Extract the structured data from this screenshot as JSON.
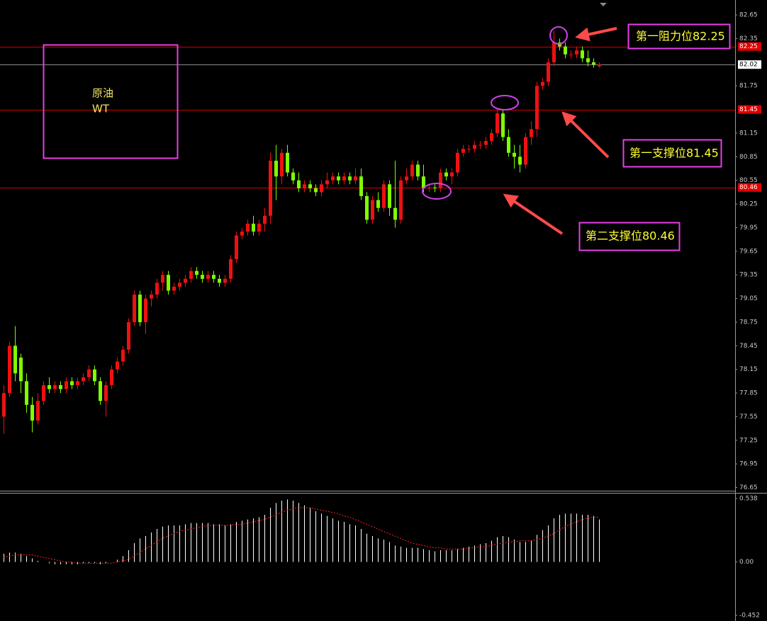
{
  "chart_data": [
    {
      "type": "candlestick",
      "ylim": [
        76.61,
        82.84
      ],
      "yticks": [
        82.65,
        82.35,
        81.75,
        81.15,
        80.85,
        80.55,
        80.25,
        79.95,
        79.65,
        79.35,
        79.05,
        78.75,
        78.45,
        78.15,
        77.85,
        77.55,
        77.25,
        76.95,
        76.65
      ],
      "up_color": "#ee1111",
      "down_color": "#7fff00",
      "open": [
        77.55,
        77.85,
        78.45,
        78.3,
        78.0,
        77.7,
        77.5,
        77.75,
        77.95,
        77.9,
        77.95,
        77.9,
        78.0,
        77.95,
        78.0,
        78.05,
        78.15,
        78.0,
        77.75,
        77.95,
        78.15,
        78.25,
        78.4,
        78.75,
        79.1,
        78.75,
        79.05,
        79.1,
        79.25,
        79.35,
        79.15,
        79.2,
        79.25,
        79.3,
        79.4,
        79.35,
        79.3,
        79.35,
        79.3,
        79.25,
        79.3,
        79.55,
        79.85,
        79.9,
        80.0,
        79.9,
        80.0,
        80.1,
        80.8,
        80.6,
        80.9,
        80.65,
        80.55,
        80.45,
        80.5,
        80.45,
        80.4,
        80.5,
        80.55,
        80.6,
        80.55,
        80.6,
        80.55,
        80.6,
        80.35,
        80.05,
        80.3,
        80.2,
        80.5,
        80.2,
        80.05,
        80.55,
        80.6,
        80.75,
        80.6,
        80.45,
        80.46,
        80.45,
        80.65,
        80.6,
        80.65,
        80.9,
        80.95,
        80.95,
        81.0,
        81.0,
        81.05,
        81.15,
        81.4,
        81.1,
        80.9,
        80.85,
        80.75,
        81.1,
        81.2,
        81.75,
        81.8,
        82.05,
        82.3,
        82.25,
        82.15,
        82.15,
        82.2,
        82.1,
        82.05,
        82.0
      ],
      "high": [
        77.95,
        78.5,
        78.7,
        78.35,
        78.1,
        77.8,
        77.85,
        78.0,
        78.05,
        78.0,
        78.0,
        78.05,
        78.05,
        78.05,
        78.1,
        78.2,
        78.2,
        78.05,
        78.0,
        78.2,
        78.3,
        78.45,
        78.8,
        79.15,
        79.15,
        79.1,
        79.15,
        79.3,
        79.4,
        79.4,
        79.25,
        79.3,
        79.35,
        79.45,
        79.45,
        79.4,
        79.4,
        79.4,
        79.35,
        79.35,
        79.6,
        79.9,
        79.95,
        80.05,
        80.1,
        80.05,
        80.2,
        80.9,
        81.0,
        80.95,
        81.0,
        80.7,
        80.65,
        80.55,
        80.55,
        80.5,
        80.55,
        80.65,
        80.65,
        80.65,
        80.65,
        80.65,
        80.7,
        80.7,
        80.4,
        80.35,
        80.4,
        80.55,
        80.55,
        80.8,
        80.6,
        80.7,
        80.8,
        80.8,
        80.75,
        80.5,
        80.5,
        80.7,
        80.7,
        80.7,
        80.95,
        81.0,
        81.0,
        81.05,
        81.05,
        81.1,
        81.2,
        81.45,
        81.45,
        81.2,
        81.0,
        81.0,
        81.15,
        81.3,
        81.8,
        81.85,
        82.1,
        82.45,
        82.35,
        82.3,
        82.2,
        82.25,
        82.25,
        82.2,
        82.1,
        82.05
      ],
      "low": [
        77.33,
        77.8,
        78.0,
        77.85,
        77.6,
        77.35,
        77.45,
        77.7,
        77.85,
        77.85,
        77.85,
        77.85,
        77.9,
        77.9,
        77.95,
        78.0,
        77.95,
        77.7,
        77.55,
        77.9,
        78.1,
        78.2,
        78.35,
        78.7,
        78.7,
        78.6,
        78.95,
        79.05,
        79.15,
        79.1,
        79.1,
        79.15,
        79.2,
        79.25,
        79.3,
        79.25,
        79.25,
        79.25,
        79.2,
        79.2,
        79.25,
        79.5,
        79.8,
        79.85,
        79.85,
        79.85,
        79.9,
        80.0,
        80.3,
        80.5,
        80.6,
        80.5,
        80.4,
        80.4,
        80.4,
        80.35,
        80.35,
        80.45,
        80.5,
        80.5,
        80.5,
        80.5,
        80.5,
        80.3,
        80.0,
        80.0,
        80.15,
        80.15,
        80.1,
        79.95,
        80.0,
        80.5,
        80.55,
        80.55,
        80.4,
        80.4,
        80.4,
        80.4,
        80.55,
        80.5,
        80.6,
        80.85,
        80.9,
        80.9,
        80.95,
        80.95,
        81.0,
        81.1,
        81.05,
        80.85,
        80.7,
        80.65,
        80.7,
        81.0,
        81.1,
        81.7,
        81.75,
        82.0,
        82.2,
        82.1,
        82.1,
        82.1,
        82.05,
        82.0,
        81.98,
        81.98
      ],
      "close": [
        77.85,
        78.45,
        78.1,
        78.0,
        77.7,
        77.5,
        77.75,
        77.95,
        77.9,
        77.95,
        77.9,
        78.0,
        77.95,
        78.0,
        78.05,
        78.15,
        78.0,
        77.75,
        77.95,
        78.15,
        78.25,
        78.4,
        78.75,
        79.1,
        78.75,
        79.05,
        79.1,
        79.25,
        79.35,
        79.15,
        79.2,
        79.25,
        79.3,
        79.4,
        79.35,
        79.3,
        79.35,
        79.3,
        79.25,
        79.3,
        79.55,
        79.85,
        79.9,
        80.0,
        79.9,
        80.0,
        80.1,
        80.8,
        80.6,
        80.9,
        80.65,
        80.55,
        80.45,
        80.5,
        80.45,
        80.4,
        80.5,
        80.55,
        80.6,
        80.55,
        80.6,
        80.55,
        80.6,
        80.35,
        80.05,
        80.3,
        80.2,
        80.5,
        80.2,
        80.05,
        80.55,
        80.6,
        80.75,
        80.6,
        80.45,
        80.46,
        80.45,
        80.65,
        80.6,
        80.65,
        80.9,
        80.95,
        80.95,
        81.0,
        81.0,
        81.05,
        81.15,
        81.4,
        81.1,
        80.9,
        80.85,
        80.75,
        81.1,
        81.2,
        81.75,
        81.8,
        82.05,
        82.3,
        82.25,
        82.15,
        82.15,
        82.2,
        82.1,
        82.05,
        82.02,
        82.02
      ],
      "price_lines": [
        {
          "value": 82.25,
          "color": "#d00000",
          "tag_color": "#e00000",
          "tag_text_color": "#ffffff"
        },
        {
          "value": 82.02,
          "color": "#8c8c8c",
          "tag_color": "#ffffff",
          "tag_text_color": "#000000"
        },
        {
          "value": 81.45,
          "color": "#d00000",
          "tag_color": "#e00000",
          "tag_text_color": "#ffffff"
        },
        {
          "value": 80.46,
          "color": "#d00000",
          "tag_color": "#e00000",
          "tag_text_color": "#ffffff"
        }
      ],
      "note": {
        "lines": [
          "原油",
          "WT"
        ]
      },
      "annotations": [
        {
          "text": "第一阻力位82.25"
        },
        {
          "text": "第一支撑位81.45"
        },
        {
          "text": "第二支撑位80.46"
        }
      ]
    },
    {
      "type": "macd",
      "ylim": [
        -0.5,
        0.58
      ],
      "yticks": [
        0.538,
        {
          "value": 0,
          "label": "0.00"
        },
        -0.452
      ],
      "histogram": {
        "color": "#ffffff",
        "values": [
          0.07,
          0.08,
          0.08,
          0.07,
          0.05,
          0.03,
          0.01,
          0.0,
          -0.01,
          -0.02,
          -0.02,
          -0.02,
          -0.02,
          -0.02,
          -0.01,
          -0.01,
          -0.01,
          -0.02,
          -0.01,
          0.0,
          0.02,
          0.05,
          0.1,
          0.16,
          0.2,
          0.22,
          0.25,
          0.28,
          0.3,
          0.31,
          0.31,
          0.31,
          0.32,
          0.33,
          0.33,
          0.33,
          0.33,
          0.32,
          0.32,
          0.31,
          0.32,
          0.34,
          0.35,
          0.36,
          0.37,
          0.38,
          0.4,
          0.46,
          0.5,
          0.52,
          0.53,
          0.52,
          0.5,
          0.48,
          0.46,
          0.43,
          0.41,
          0.39,
          0.37,
          0.35,
          0.34,
          0.32,
          0.31,
          0.28,
          0.24,
          0.22,
          0.2,
          0.19,
          0.17,
          0.14,
          0.13,
          0.12,
          0.12,
          0.12,
          0.11,
          0.1,
          0.09,
          0.1,
          0.1,
          0.1,
          0.11,
          0.12,
          0.13,
          0.14,
          0.15,
          0.16,
          0.18,
          0.21,
          0.22,
          0.21,
          0.19,
          0.17,
          0.17,
          0.18,
          0.23,
          0.27,
          0.31,
          0.37,
          0.4,
          0.41,
          0.41,
          0.41,
          0.4,
          0.4,
          0.39,
          0.36
        ]
      },
      "signal": {
        "color": "#ff2020",
        "values": [
          0.04,
          0.05,
          0.06,
          0.06,
          0.06,
          0.06,
          0.05,
          0.04,
          0.03,
          0.02,
          0.01,
          0.0,
          0.0,
          -0.01,
          -0.01,
          -0.01,
          -0.01,
          -0.01,
          -0.01,
          -0.01,
          0.0,
          0.01,
          0.02,
          0.05,
          0.08,
          0.11,
          0.14,
          0.17,
          0.2,
          0.22,
          0.24,
          0.26,
          0.27,
          0.28,
          0.29,
          0.3,
          0.31,
          0.31,
          0.31,
          0.31,
          0.31,
          0.32,
          0.32,
          0.33,
          0.34,
          0.35,
          0.36,
          0.38,
          0.4,
          0.42,
          0.44,
          0.45,
          0.46,
          0.46,
          0.46,
          0.45,
          0.44,
          0.43,
          0.42,
          0.41,
          0.39,
          0.38,
          0.36,
          0.34,
          0.32,
          0.3,
          0.28,
          0.26,
          0.24,
          0.22,
          0.2,
          0.18,
          0.16,
          0.15,
          0.14,
          0.13,
          0.12,
          0.12,
          0.11,
          0.11,
          0.11,
          0.11,
          0.12,
          0.12,
          0.13,
          0.13,
          0.14,
          0.15,
          0.16,
          0.17,
          0.17,
          0.18,
          0.18,
          0.18,
          0.19,
          0.2,
          0.22,
          0.24,
          0.27,
          0.3,
          0.32,
          0.34,
          0.36,
          0.37,
          0.38,
          0.38
        ]
      }
    }
  ]
}
